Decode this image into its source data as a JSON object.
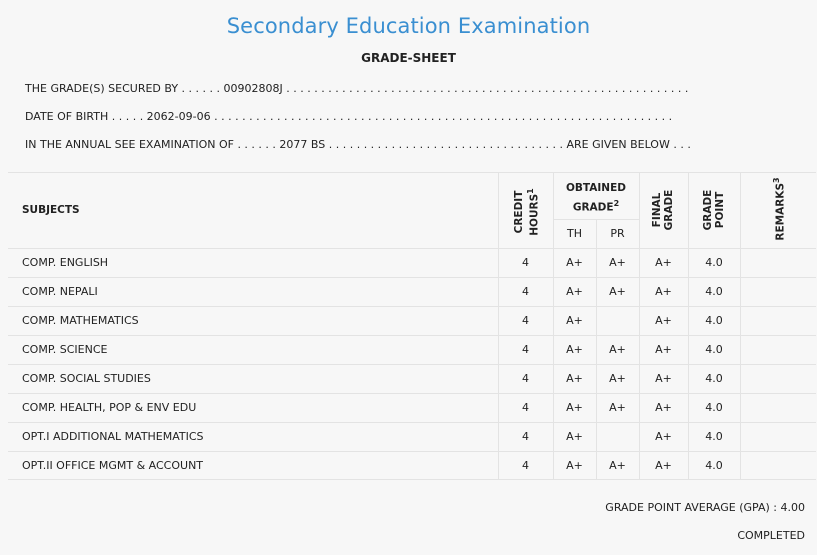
{
  "header": {
    "title": "Secondary Education Examination",
    "subtitle": "GRADE-SHEET"
  },
  "info": {
    "line1": "THE GRADE(S) SECURED BY . . . . . . 00902808J . . . . . . . . . . . . . . . . . . . . . . . . . . . . . . . . . . . . . . . . . . . . . . . . . . . . . . . . . .",
    "line2": "DATE OF BIRTH . . . . . 2062-09-06 . . . . . . . . . . . . . . . . . . . . . . . . . . . . . . . . . . . . . . . . . . . . . . . . . . . . . . . . . . . . . . . . . .",
    "line3": "IN THE ANNUAL SEE EXAMINATION OF . . . . . . 2077 BS . . . . . . . . . . . . . . . . . . . . . . . . . . . . . . . . . . ARE GIVEN BELOW . . ."
  },
  "table": {
    "col_subjects": "SUBJECTS",
    "col_credit_1": "CREDIT",
    "col_credit_2": "HOURS",
    "col_credit_sup": "1",
    "col_obtained_1": "OBTAINED",
    "col_obtained_2": "GRADE",
    "col_obtained_sup": "2",
    "col_th": "TH",
    "col_pr": "PR",
    "col_final_1": "FINAL",
    "col_final_2": "GRADE",
    "col_gp_1": "GRADE",
    "col_gp_2": "POINT",
    "col_remarks": "REMARKS",
    "col_remarks_sup": "3",
    "rows": [
      {
        "subject": "COMP. ENGLISH",
        "credit": "4",
        "th": "A+",
        "pr": "A+",
        "final": "A+",
        "gp": "4.0",
        "remarks": ""
      },
      {
        "subject": "COMP. NEPALI",
        "credit": "4",
        "th": "A+",
        "pr": "A+",
        "final": "A+",
        "gp": "4.0",
        "remarks": ""
      },
      {
        "subject": "COMP. MATHEMATICS",
        "credit": "4",
        "th": "A+",
        "pr": "",
        "final": "A+",
        "gp": "4.0",
        "remarks": ""
      },
      {
        "subject": "COMP. SCIENCE",
        "credit": "4",
        "th": "A+",
        "pr": "A+",
        "final": "A+",
        "gp": "4.0",
        "remarks": ""
      },
      {
        "subject": "COMP. SOCIAL STUDIES",
        "credit": "4",
        "th": "A+",
        "pr": "A+",
        "final": "A+",
        "gp": "4.0",
        "remarks": ""
      },
      {
        "subject": "COMP. HEALTH, POP & ENV EDU",
        "credit": "4",
        "th": "A+",
        "pr": "A+",
        "final": "A+",
        "gp": "4.0",
        "remarks": ""
      },
      {
        "subject": "OPT.I ADDITIONAL MATHEMATICS",
        "credit": "4",
        "th": "A+",
        "pr": "",
        "final": "A+",
        "gp": "4.0",
        "remarks": ""
      },
      {
        "subject": "OPT.II OFFICE MGMT & ACCOUNT",
        "credit": "4",
        "th": "A+",
        "pr": "A+",
        "final": "A+",
        "gp": "4.0",
        "remarks": ""
      }
    ]
  },
  "footer": {
    "gpa": "GRADE POINT AVERAGE (GPA) : 4.00",
    "status": "COMPLETED"
  }
}
